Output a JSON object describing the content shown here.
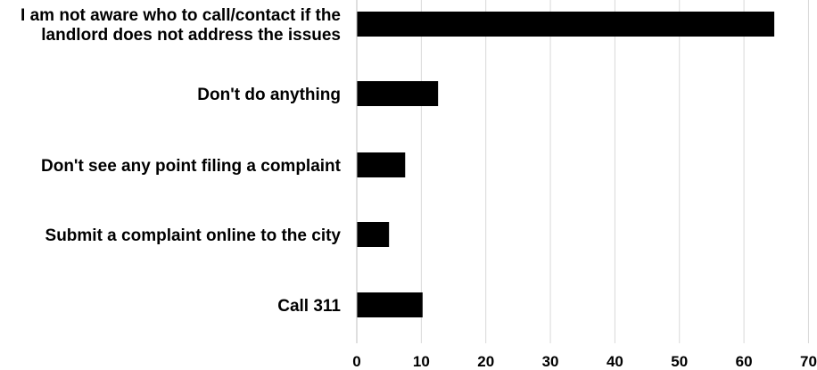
{
  "chart_data": {
    "type": "bar",
    "orientation": "horizontal",
    "title": "",
    "xlabel": "",
    "ylabel": "",
    "categories": [
      [
        "I am not aware who to call/contact if the",
        "landlord does not address the issues"
      ],
      [
        "Don't do anything"
      ],
      [
        "Don't see any point filing a complaint"
      ],
      [
        "Submit a complaint online to the city"
      ],
      [
        "Call 311"
      ]
    ],
    "values": [
      64.7,
      12.6,
      7.5,
      5.0,
      10.2
    ],
    "xlim": [
      0,
      70
    ],
    "xticks": [
      0,
      10,
      20,
      30,
      40,
      50,
      60,
      70
    ],
    "grid": true,
    "legend": "none",
    "colors": {
      "bar": "#000000",
      "grid": "#d9d9d9",
      "axis": "#bfbfbf"
    }
  }
}
